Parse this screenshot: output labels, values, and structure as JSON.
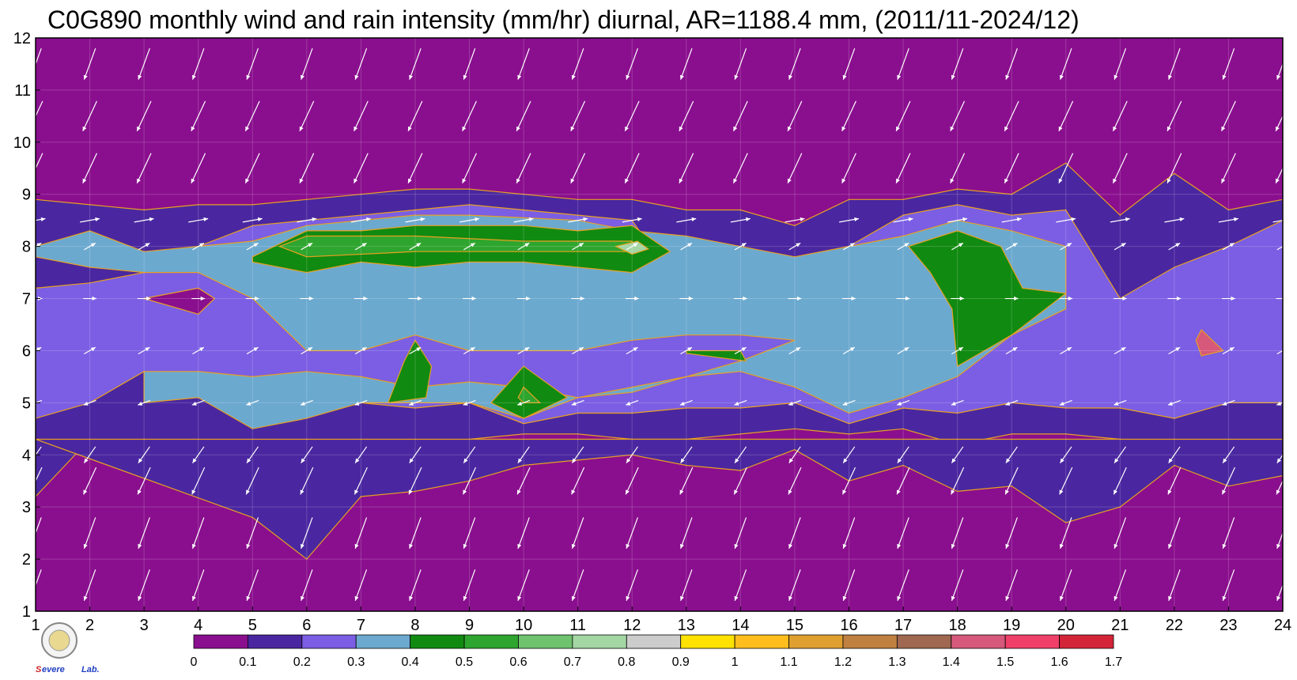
{
  "chart_data": {
    "type": "heatmap",
    "title": "C0G890 monthly wind and rain intensity (mm/hr) diurnal, AR=1188.4 mm, (2011/11-2024/12)",
    "x_ticks": [
      1,
      2,
      3,
      4,
      5,
      6,
      7,
      8,
      9,
      10,
      11,
      12,
      13,
      14,
      15,
      16,
      17,
      18,
      19,
      20,
      21,
      22,
      23,
      24
    ],
    "y_ticks": [
      1,
      2,
      3,
      4,
      5,
      6,
      7,
      8,
      9,
      10,
      11,
      12
    ],
    "xlim": [
      1,
      24
    ],
    "ylim": [
      1,
      12
    ],
    "colorbar": {
      "ticks": [
        "0",
        "0.1",
        "0.2",
        "0.3",
        "0.4",
        "0.5",
        "0.6",
        "0.7",
        "0.8",
        "0.9",
        "1",
        "1.1",
        "1.2",
        "1.3",
        "1.4",
        "1.5",
        "1.6",
        "1.7"
      ],
      "colors": [
        "#8a0f8e",
        "#4a27a0",
        "#7b5ee3",
        "#6ca9cf",
        "#118a11",
        "#2ea52e",
        "#6fc36f",
        "#a4d6a4",
        "#cccccc",
        "#ffe200",
        "#ffbe1e",
        "#e0a030",
        "#bf8040",
        "#a06850",
        "#d6587a",
        "#f0406a",
        "#d42438"
      ]
    },
    "bands": [
      {
        "level": 0.1,
        "color": "#4a27a0",
        "points": [
          [
            1,
            3.2
          ],
          [
            2,
            4.3
          ],
          [
            3,
            4.1
          ],
          [
            4,
            4.0
          ],
          [
            5,
            3.9
          ],
          [
            6,
            3.9
          ],
          [
            7,
            4.3
          ],
          [
            8,
            4.1
          ],
          [
            9,
            4.3
          ],
          [
            10,
            4.4
          ],
          [
            11,
            4.4
          ],
          [
            12,
            4.3
          ],
          [
            13,
            4.3
          ],
          [
            14,
            4.4
          ],
          [
            15,
            4.5
          ],
          [
            16,
            4.4
          ],
          [
            17,
            4.5
          ],
          [
            18,
            4.2
          ],
          [
            19,
            4.4
          ],
          [
            20,
            4.4
          ],
          [
            21,
            4.3
          ],
          [
            22,
            4.0
          ],
          [
            23,
            4.0
          ],
          [
            24,
            4.1
          ],
          [
            24,
            8.9
          ],
          [
            23,
            8.7
          ],
          [
            22,
            9.4
          ],
          [
            21,
            8.6
          ],
          [
            20,
            9.6
          ],
          [
            19,
            9.0
          ],
          [
            18,
            9.1
          ],
          [
            17,
            8.9
          ],
          [
            16,
            8.9
          ],
          [
            15,
            8.4
          ],
          [
            14,
            8.7
          ],
          [
            13,
            8.7
          ],
          [
            12,
            8.9
          ],
          [
            11,
            8.9
          ],
          [
            10,
            9.0
          ],
          [
            9,
            9.1
          ],
          [
            8,
            9.1
          ],
          [
            7,
            9.0
          ],
          [
            6,
            8.9
          ],
          [
            5,
            8.8
          ],
          [
            4,
            8.8
          ],
          [
            3,
            8.7
          ],
          [
            2,
            8.8
          ],
          [
            1,
            8.9
          ]
        ]
      },
      {
        "level": 0.1,
        "color": "#4a27a0",
        "points": [
          [
            5,
            2.8
          ],
          [
            6,
            2.0
          ],
          [
            7,
            3.2
          ],
          [
            8,
            3.3
          ],
          [
            9,
            3.5
          ],
          [
            10,
            3.8
          ],
          [
            11,
            3.9
          ],
          [
            12,
            4.0
          ],
          [
            13,
            3.8
          ],
          [
            14,
            3.7
          ],
          [
            15,
            4.1
          ],
          [
            16,
            3.5
          ],
          [
            17,
            3.8
          ],
          [
            18,
            3.3
          ],
          [
            19,
            3.4
          ],
          [
            20,
            2.7
          ],
          [
            21,
            3.0
          ],
          [
            22,
            3.8
          ],
          [
            23,
            3.4
          ],
          [
            24,
            3.6
          ],
          [
            24,
            4.3
          ],
          [
            1,
            4.3
          ]
        ]
      },
      {
        "level": 0.2,
        "color": "#7b5ee3",
        "points": [
          [
            1,
            4.7
          ],
          [
            2,
            5.0
          ],
          [
            3,
            5.6
          ],
          [
            4,
            5.3
          ],
          [
            5,
            4.8
          ],
          [
            6,
            5.4
          ],
          [
            7,
            5.0
          ],
          [
            8,
            4.9
          ],
          [
            9,
            5.0
          ],
          [
            10,
            4.6
          ],
          [
            11,
            4.8
          ],
          [
            12,
            4.8
          ],
          [
            13,
            4.9
          ],
          [
            14,
            4.9
          ],
          [
            15,
            5.0
          ],
          [
            16,
            4.6
          ],
          [
            17,
            4.9
          ],
          [
            18,
            4.8
          ],
          [
            19,
            5.0
          ],
          [
            20,
            4.9
          ],
          [
            21,
            4.9
          ],
          [
            22,
            4.7
          ],
          [
            23,
            5.0
          ],
          [
            24,
            5.0
          ],
          [
            24,
            8.5
          ],
          [
            23,
            8.0
          ],
          [
            22,
            7.6
          ],
          [
            21,
            7.0
          ],
          [
            20,
            8.7
          ],
          [
            19,
            8.6
          ],
          [
            18,
            8.8
          ],
          [
            17,
            8.6
          ],
          [
            16,
            8.0
          ],
          [
            15,
            7.2
          ],
          [
            14,
            7.6
          ],
          [
            13,
            7.0
          ],
          [
            12,
            8.5
          ],
          [
            11,
            8.6
          ],
          [
            10,
            8.7
          ],
          [
            9,
            8.8
          ],
          [
            8,
            8.7
          ],
          [
            7,
            8.6
          ],
          [
            6,
            8.5
          ],
          [
            5,
            8.4
          ],
          [
            4,
            8.0
          ],
          [
            3,
            7.5
          ],
          [
            2,
            7.3
          ],
          [
            1,
            7.2
          ]
        ]
      },
      {
        "level": 0.3,
        "color": "#6ca9cf",
        "points": [
          [
            3,
            5.0
          ],
          [
            4,
            5.1
          ],
          [
            5,
            4.5
          ],
          [
            6,
            4.7
          ],
          [
            7,
            5.0
          ],
          [
            8,
            5.0
          ],
          [
            9,
            5.0
          ],
          [
            10,
            4.7
          ],
          [
            11,
            5.1
          ],
          [
            12,
            5.3
          ],
          [
            13,
            5.5
          ],
          [
            14,
            5.6
          ],
          [
            15,
            5.3
          ],
          [
            16,
            4.8
          ],
          [
            17,
            5.1
          ],
          [
            18,
            5.5
          ],
          [
            19,
            6.3
          ],
          [
            20,
            6.8
          ],
          [
            20,
            8.0
          ],
          [
            19,
            8.3
          ],
          [
            18,
            8.5
          ],
          [
            17,
            8.2
          ],
          [
            16,
            8.0
          ],
          [
            15,
            7.8
          ],
          [
            13,
            8.2
          ],
          [
            12,
            8.3
          ],
          [
            11,
            8.5
          ],
          [
            9,
            8.6
          ],
          [
            8,
            8.6
          ],
          [
            6,
            8.4
          ],
          [
            5,
            8.1
          ],
          [
            4,
            8.0
          ],
          [
            3,
            7.9
          ],
          [
            2,
            8.3
          ],
          [
            1,
            8.0
          ],
          [
            1,
            7.8
          ],
          [
            2,
            7.6
          ],
          [
            3,
            7.5
          ],
          [
            4,
            7.5
          ],
          [
            5,
            7.0
          ],
          [
            6,
            6.0
          ],
          [
            7,
            6.0
          ],
          [
            8,
            6.3
          ],
          [
            9,
            6.0
          ],
          [
            10,
            6.0
          ],
          [
            11,
            6.0
          ],
          [
            12,
            6.2
          ],
          [
            13,
            6.3
          ],
          [
            14,
            6.3
          ],
          [
            15,
            6.2
          ],
          [
            14,
            5.8
          ],
          [
            13,
            5.5
          ],
          [
            12,
            5.2
          ],
          [
            11,
            5.1
          ],
          [
            10,
            5.3
          ],
          [
            9,
            5.4
          ],
          [
            8,
            5.3
          ],
          [
            7,
            5.5
          ],
          [
            6,
            5.6
          ],
          [
            5,
            5.5
          ],
          [
            4,
            5.6
          ],
          [
            3,
            5.6
          ]
        ]
      },
      {
        "level": 0.4,
        "color": "#118a11",
        "points": [
          [
            5,
            7.8
          ],
          [
            6,
            8.3
          ],
          [
            7,
            8.3
          ],
          [
            8,
            8.4
          ],
          [
            9,
            8.4
          ],
          [
            10,
            8.4
          ],
          [
            11,
            8.3
          ],
          [
            12,
            8.4
          ],
          [
            12.7,
            7.9
          ],
          [
            12,
            7.5
          ],
          [
            11,
            7.6
          ],
          [
            10,
            7.7
          ],
          [
            9,
            7.7
          ],
          [
            8,
            7.6
          ],
          [
            7,
            7.7
          ],
          [
            6,
            7.5
          ],
          [
            5,
            7.7
          ]
        ]
      },
      {
        "level": 0.4,
        "color": "#118a11",
        "points": [
          [
            17.1,
            8.0
          ],
          [
            18,
            8.3
          ],
          [
            18.8,
            8.0
          ],
          [
            19.2,
            7.2
          ],
          [
            20,
            7.1
          ],
          [
            19,
            6.3
          ],
          [
            18,
            5.7
          ],
          [
            17.9,
            6.8
          ],
          [
            17.5,
            7.5
          ]
        ]
      },
      {
        "level": 0.4,
        "color": "#118a11",
        "points": [
          [
            8,
            6.2
          ],
          [
            8.3,
            5.7
          ],
          [
            8.2,
            5.1
          ],
          [
            7.5,
            5.0
          ],
          [
            7.8,
            5.8
          ]
        ]
      },
      {
        "level": 0.4,
        "color": "#118a11",
        "points": [
          [
            10,
            5.7
          ],
          [
            10.8,
            5.1
          ],
          [
            10,
            4.7
          ],
          [
            9.4,
            5.0
          ]
        ]
      },
      {
        "level": 0.4,
        "color": "#118a11",
        "points": [
          [
            13,
            6.0
          ],
          [
            14,
            6.0
          ],
          [
            14.1,
            5.8
          ],
          [
            13,
            5.95
          ]
        ]
      },
      {
        "level": 0.5,
        "color": "#2ea52e",
        "points": [
          [
            5.5,
            8.0
          ],
          [
            6,
            8.2
          ],
          [
            8,
            8.2
          ],
          [
            10,
            8.1
          ],
          [
            12,
            8.1
          ],
          [
            12,
            7.9
          ],
          [
            10,
            7.9
          ],
          [
            8,
            7.9
          ],
          [
            6,
            7.8
          ]
        ]
      },
      {
        "level": 0.5,
        "color": "#2ea52e",
        "points": [
          [
            10,
            5.3
          ],
          [
            10.3,
            5.0
          ],
          [
            10,
            5.0
          ],
          [
            9.9,
            5.1
          ]
        ]
      },
      {
        "level": 0.7,
        "color": "#a4d6a4",
        "points": [
          [
            11.7,
            8.0
          ],
          [
            12.1,
            8.1
          ],
          [
            12.3,
            7.95
          ],
          [
            12,
            7.85
          ]
        ]
      },
      {
        "level": 0.1,
        "color": "#8a0f8e",
        "points": [
          [
            3,
            7.0
          ],
          [
            4,
            7.2
          ],
          [
            4.3,
            7.0
          ],
          [
            4,
            6.7
          ]
        ]
      },
      {
        "level": 1.5,
        "color": "#d6587a",
        "points": [
          [
            22.5,
            6.4
          ],
          [
            22.9,
            6.0
          ],
          [
            22.5,
            5.9
          ],
          [
            22.4,
            6.2
          ]
        ]
      }
    ],
    "wind": {
      "comment_units": "direction in degrees (meteorological, wind blowing toward = arrow), speed relative",
      "by_row": [
        {
          "y": 1.5,
          "dir_deg": 200,
          "speed": 1.0
        },
        {
          "y": 2.5,
          "dir_deg": 200,
          "speed": 1.0
        },
        {
          "y": 3.5,
          "dir_deg": 205,
          "speed": 0.9
        },
        {
          "y": 4.0,
          "dir_deg": 215,
          "speed": 0.6
        },
        {
          "y": 5.0,
          "dir_deg": 250,
          "speed": 0.4
        },
        {
          "y": 6.0,
          "dir_deg": 60,
          "speed": 0.4
        },
        {
          "y": 7.0,
          "dir_deg": 90,
          "speed": 0.4
        },
        {
          "y": 8.0,
          "dir_deg": 60,
          "speed": 0.4
        },
        {
          "y": 8.5,
          "dir_deg": 80,
          "speed": 0.6
        },
        {
          "y": 9.5,
          "dir_deg": 205,
          "speed": 1.0
        },
        {
          "y": 10.5,
          "dir_deg": 205,
          "speed": 1.0
        },
        {
          "y": 11.5,
          "dir_deg": 200,
          "speed": 1.0
        }
      ]
    }
  }
}
